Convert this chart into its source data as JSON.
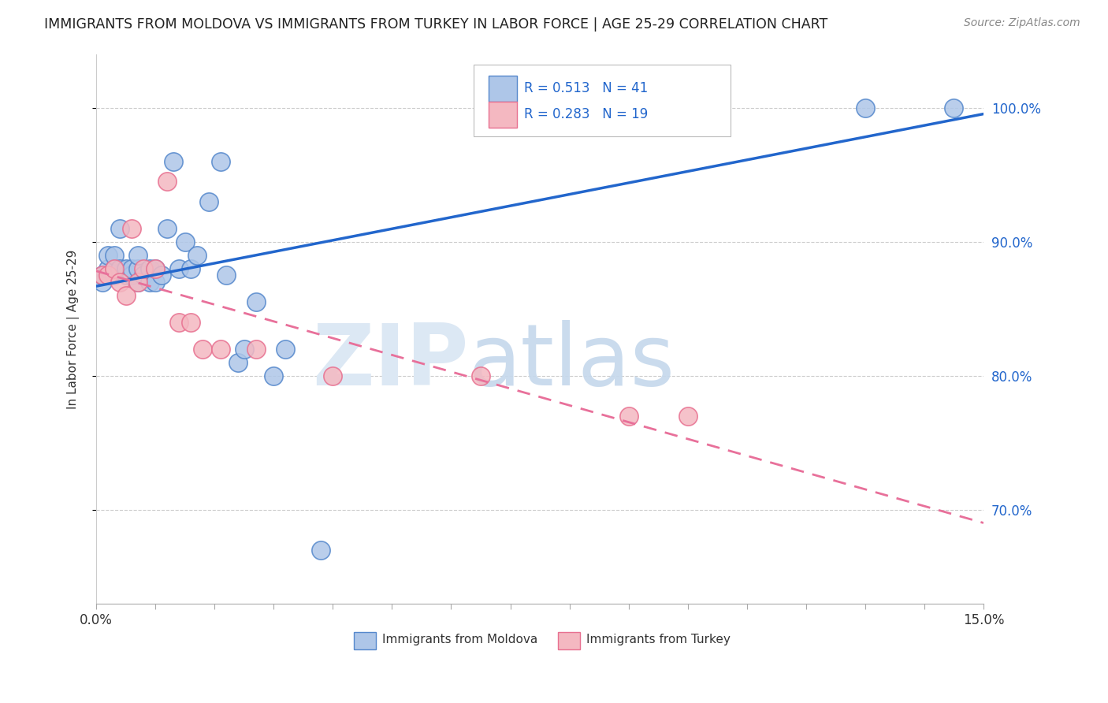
{
  "title": "IMMIGRANTS FROM MOLDOVA VS IMMIGRANTS FROM TURKEY IN LABOR FORCE | AGE 25-29 CORRELATION CHART",
  "source": "Source: ZipAtlas.com",
  "ylabel": "In Labor Force | Age 25-29",
  "xlim": [
    0.0,
    0.15
  ],
  "ylim": [
    0.63,
    1.04
  ],
  "ytick_values": [
    0.7,
    0.8,
    0.9,
    1.0
  ],
  "ytick_labels": [
    "70.0%",
    "80.0%",
    "90.0%",
    "100.0%"
  ],
  "moldova_R": 0.513,
  "moldova_N": 41,
  "turkey_R": 0.283,
  "turkey_N": 19,
  "moldova_color": "#aec6e8",
  "turkey_color": "#f4b8c1",
  "moldova_edge_color": "#5588cc",
  "turkey_edge_color": "#e87090",
  "moldova_line_color": "#2266cc",
  "turkey_line_color": "#e8709a",
  "legend_label_moldova": "Immigrants from Moldova",
  "legend_label_turkey": "Immigrants from Turkey",
  "moldova_x": [
    0.001,
    0.001,
    0.002,
    0.002,
    0.003,
    0.003,
    0.003,
    0.004,
    0.004,
    0.005,
    0.005,
    0.006,
    0.006,
    0.007,
    0.007,
    0.007,
    0.008,
    0.009,
    0.009,
    0.01,
    0.01,
    0.011,
    0.012,
    0.013,
    0.014,
    0.015,
    0.016,
    0.017,
    0.019,
    0.021,
    0.022,
    0.024,
    0.025,
    0.027,
    0.03,
    0.032,
    0.038,
    0.07,
    0.09,
    0.13,
    0.145
  ],
  "moldova_y": [
    0.87,
    0.875,
    0.88,
    0.89,
    0.875,
    0.88,
    0.89,
    0.88,
    0.91,
    0.875,
    0.88,
    0.875,
    0.88,
    0.87,
    0.88,
    0.89,
    0.875,
    0.88,
    0.87,
    0.88,
    0.87,
    0.875,
    0.91,
    0.96,
    0.88,
    0.9,
    0.88,
    0.89,
    0.93,
    0.96,
    0.875,
    0.81,
    0.82,
    0.855,
    0.8,
    0.82,
    0.67,
    0.99,
    1.0,
    1.0,
    1.0
  ],
  "turkey_x": [
    0.001,
    0.002,
    0.003,
    0.004,
    0.005,
    0.006,
    0.007,
    0.008,
    0.01,
    0.012,
    0.014,
    0.016,
    0.018,
    0.021,
    0.027,
    0.04,
    0.065,
    0.09,
    0.1
  ],
  "turkey_y": [
    0.875,
    0.875,
    0.88,
    0.87,
    0.86,
    0.91,
    0.87,
    0.88,
    0.88,
    0.945,
    0.84,
    0.84,
    0.82,
    0.82,
    0.82,
    0.8,
    0.8,
    0.77,
    0.77
  ]
}
